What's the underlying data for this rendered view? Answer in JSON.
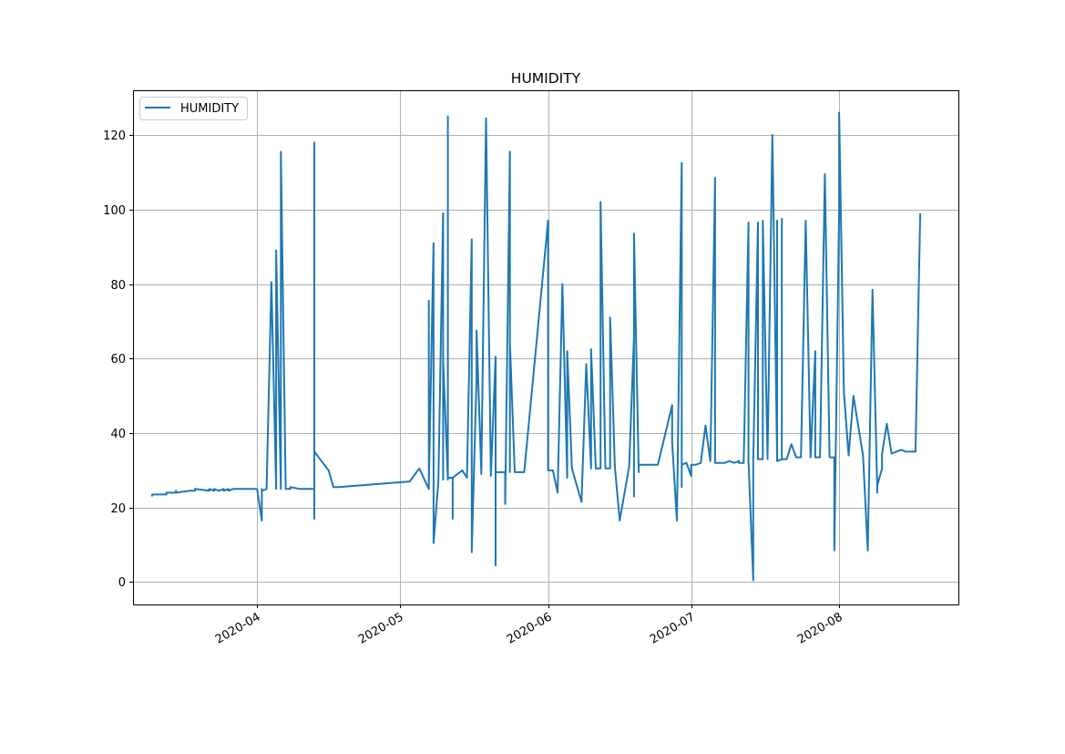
{
  "chart_data": {
    "type": "line",
    "title": "HUMIDITY",
    "xlabel": "",
    "ylabel": "",
    "x_type": "date",
    "xlim": [
      "2020-03-06",
      "2020-08-26"
    ],
    "ylim": [
      -6,
      132
    ],
    "x_ticks": [
      "2020-04-01",
      "2020-05-01",
      "2020-06-01",
      "2020-07-01",
      "2020-08-01"
    ],
    "x_tick_labels": [
      "2020-04",
      "2020-05",
      "2020-06",
      "2020-07",
      "2020-08"
    ],
    "y_ticks": [
      0,
      20,
      40,
      60,
      80,
      100,
      120
    ],
    "y_tick_labels": [
      "0",
      "20",
      "40",
      "60",
      "80",
      "100",
      "120"
    ],
    "grid": true,
    "legend_position": "upper-left",
    "colors": {
      "line": "#1f77b4",
      "grid": "#b0b0b0",
      "axes": "#000000"
    },
    "series": [
      {
        "name": "HUMIDITY",
        "x": [
          "2020-03-10",
          "2020-03-10",
          "2020-03-13",
          "2020-03-13",
          "2020-03-15",
          "2020-03-15",
          "2020-03-15",
          "2020-03-18",
          "2020-03-19",
          "2020-03-19",
          "2020-03-22",
          "2020-03-22",
          "2020-03-23",
          "2020-03-23",
          "2020-03-24",
          "2020-03-25",
          "2020-03-25",
          "2020-03-26",
          "2020-03-26",
          "2020-03-27",
          "2020-03-29",
          "2020-03-29",
          "2020-04-01",
          "2020-04:01",
          "2020-04-02",
          "2020-04-02",
          "2020-04-02",
          "2020-04-03",
          "2020-04-04",
          "2020-04-05",
          "2020-04-05",
          "2020-04-06",
          "2020-04-06",
          "2020-04-07",
          "2020-04-07",
          "2020-04-07",
          "2020-04-08",
          "2020-04-08",
          "2020-04-10",
          "2020-04-11",
          "2020-04-13",
          "2020-04-13",
          "2020-04-13",
          "2020-04-13",
          "2020-04-13",
          "2020-04-16",
          "2020-04-17",
          "2020-04-18",
          "2020-05-03",
          "2020-05-05",
          "2020-05-07",
          "2020-05-07",
          "2020-05-07",
          "2020-05-08",
          "2020-05-08",
          "2020-05-08",
          "2020-05-09",
          "2020-05-09",
          "2020-05-10",
          "2020-05-10",
          "2020-05-10",
          "2020-05-11",
          "2020-05-11",
          "2020-05-11",
          "2020-05-12",
          "2020-05-12",
          "2020-05-12",
          "2020-05-14",
          "2020-05-15",
          "2020-05-15",
          "2020-05-16",
          "2020-05-16",
          "2020-05-17",
          "2020-05-17",
          "2020-05-18",
          "2020-05-18",
          "2020-05-19",
          "2020-05-20",
          "2020-05-20",
          "2020-05-21",
          "2020-05-21",
          "2020-05-21",
          "2020-05-22",
          "2020-05-23",
          "2020-05-23",
          "2020-05-24",
          "2020-05-24",
          "2020-05-24",
          "2020-05-25",
          "2020-05-27",
          "2020-06-01",
          "2020-06-01",
          "2020-06-01",
          "2020-06-02",
          "2020-06-03",
          "2020-06-04",
          "2020-06-05",
          "2020-06-05",
          "2020-06-06",
          "2020-06-08",
          "2020-06-09",
          "2020-06-10",
          "2020-06-10",
          "2020-06-11",
          "2020-06-12",
          "2020-06-12",
          "2020-06-13",
          "2020-06-14",
          "2020-06-14",
          "2020-06-15",
          "2020-06-16",
          "2020-06-18",
          "2020-06-19",
          "2020-06-19",
          "2020-06-19",
          "2020-06-20",
          "2020-06-20",
          "2020-06-20",
          "2020-06-21",
          "2020-06-23",
          "2020-06-24",
          "2020-06-27",
          "2020-06-27",
          "2020-06-28",
          "2020-06-29",
          "2020-06-29",
          "2020-06-29",
          "2020-06-30",
          "2020-07-01",
          "2020-07-01",
          "2020-07-02",
          "2020-07-03",
          "2020-07-04",
          "2020-07-05",
          "2020-07-06",
          "2020-07-06",
          "2020-07-06",
          "2020-07-08",
          "2020-07-09",
          "2020-07-10",
          "2020-07-11",
          "2020-07-11",
          "2020-07-12",
          "2020-07-13",
          "2020-07-13",
          "2020-07-13",
          "2020-07-13",
          "2020-07-14",
          "2020-07-14",
          "2020-07-15",
          "2020-07-15",
          "2020-07-16",
          "2020-07-16",
          "2020-07-16",
          "2020-07-17",
          "2020-07-17",
          "2020-07-17",
          "2020-07-17",
          "2020-07-18",
          "2020-07-19",
          "2020-07-19",
          "2020-07-19",
          "2020-07-20",
          "2020-07-20",
          "2020-07-20",
          "2020-07-21",
          "2020-07-21",
          "2020-07-22",
          "2020-07-23",
          "2020-07-23",
          "2020-07-24",
          "2020-07-25",
          "2020-07-26",
          "2020-07-27",
          "2020-07-27",
          "2020-07-28",
          "2020-07-28",
          "2020-07-29",
          "2020-07-30",
          "2020-07-31",
          "2020-07-31",
          "2020-08-01",
          "2020-08-01",
          "2020-08-02",
          "2020-08-03",
          "2020-08-04",
          "2020-08-05",
          "2020-08-06",
          "2020-08-07",
          "2020-08-08",
          "2020-08-09",
          "2020-08-09",
          "2020-08-10",
          "2020-08-10",
          "2020-08-11",
          "2020-08-12",
          "2020-08-13",
          "2020-08-14",
          "2020-08-15",
          "2020-08-16",
          "2020-08-17",
          "2020-08-18"
        ],
        "y": [
          23,
          23.5,
          23.5,
          24,
          24,
          24.5,
          24,
          24.5,
          24.5,
          25,
          24.5,
          25,
          24.5,
          25,
          24.5,
          25,
          24.5,
          25,
          24.5,
          25,
          25,
          25,
          25,
          25,
          16.5,
          25,
          24.5,
          25,
          80.5,
          25,
          89,
          25,
          115.5,
          25,
          25,
          25,
          25,
          25.5,
          25,
          25,
          25,
          118,
          17,
          118,
          35,
          30,
          25.5,
          25.5,
          27,
          30.5,
          25,
          75.5,
          26,
          91,
          26.5,
          10.5,
          27,
          27,
          99,
          27.5,
          59.5,
          27.5,
          125,
          28,
          28,
          17,
          28,
          30,
          28,
          28.5,
          92,
          8,
          55,
          67.5,
          29.5,
          29,
          124.5,
          29,
          28.5,
          60.5,
          4.5,
          29.5,
          29.5,
          29.5,
          21,
          115.5,
          29.5,
          64.5,
          29.5,
          29.5,
          97,
          30,
          30,
          30,
          24,
          80,
          28,
          62,
          30.5,
          21.5,
          58.5,
          30.5,
          62.5,
          30.5,
          30.5,
          102,
          30.5,
          30.5,
          71,
          31,
          16.5,
          31,
          66,
          23,
          93.5,
          29.5,
          31,
          31.5,
          31.5,
          31.5,
          31.5,
          47.5,
          37.5,
          16.5,
          112.5,
          25.5,
          31.5,
          32,
          28.5,
          31.5,
          31.5,
          32,
          42,
          32.5,
          108.5,
          32.5,
          32,
          32,
          32.5,
          32,
          32.5,
          32,
          32,
          96.5,
          32,
          32,
          32.5,
          0.5,
          32.5,
          96.5,
          33,
          33,
          49.5,
          97,
          33.5,
          33,
          35,
          33,
          120,
          33.5,
          97,
          32.5,
          33,
          97.5,
          33,
          33,
          33,
          37,
          33.5,
          33.5,
          33.5,
          97,
          33.5,
          62,
          33.5,
          33.5,
          33.5,
          109.5,
          33.5,
          33.5,
          8.5,
          100,
          126,
          51,
          34,
          50,
          42,
          34,
          8.5,
          78.5,
          24,
          26,
          30.5,
          34.5,
          42.5,
          34.5,
          35,
          35.5,
          35,
          35,
          35,
          99
        ]
      }
    ]
  }
}
